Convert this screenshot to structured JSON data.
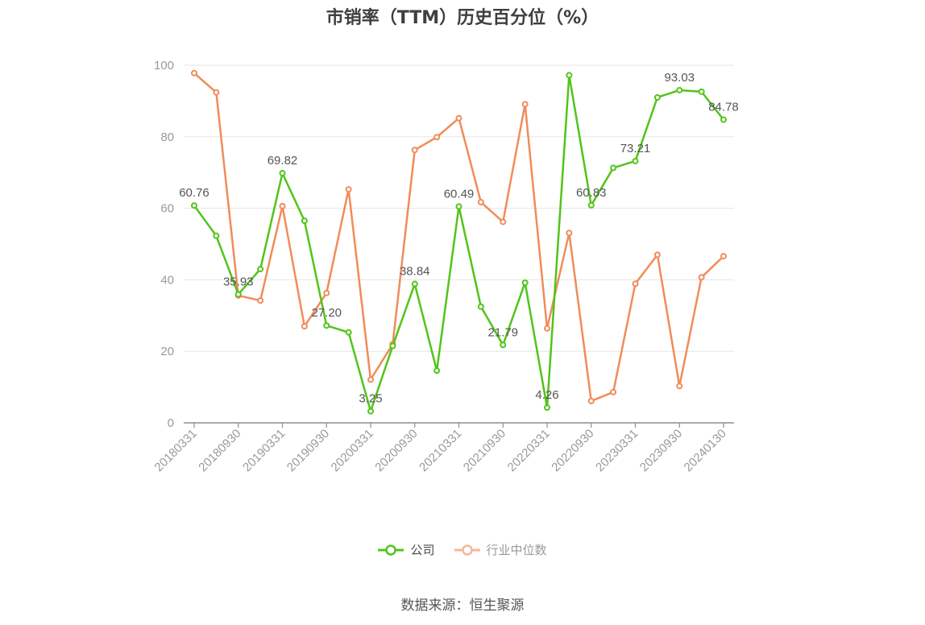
{
  "chart_data": {
    "type": "line",
    "title": "市销率（TTM）历史百分位（%）",
    "source": "数据来源：恒生聚源",
    "ylim": [
      0,
      100
    ],
    "yticks": [
      0,
      20,
      40,
      60,
      80,
      100
    ],
    "grid": true,
    "legend_position": "bottom",
    "x": [
      "20180331",
      "20180630",
      "20180930",
      "20181231",
      "20190331",
      "20190630",
      "20190930",
      "20191231",
      "20200331",
      "20200630",
      "20200930",
      "20201231",
      "20210331",
      "20210630",
      "20210930",
      "20211231",
      "20220331",
      "20220630",
      "20220930",
      "20221231",
      "20230331",
      "20230630",
      "20230930",
      "20231231",
      "20240130"
    ],
    "xtick_labels": [
      "20180331",
      "20180930",
      "20190331",
      "20190930",
      "20200331",
      "20200930",
      "20210331",
      "20210930",
      "20220331",
      "20220930",
      "20230331",
      "20230930",
      "20240130"
    ],
    "series": [
      {
        "name": "公司",
        "color": "#52c41a",
        "values": [
          60.76,
          52.3,
          35.93,
          43.0,
          69.82,
          56.5,
          27.2,
          25.3,
          3.25,
          21.5,
          38.84,
          14.6,
          60.49,
          32.5,
          21.79,
          39.2,
          4.26,
          97.2,
          60.83,
          71.3,
          73.21,
          91.0,
          93.03,
          92.6,
          84.78
        ],
        "labels": [
          "60.76",
          null,
          "35.93",
          null,
          "69.82",
          null,
          "27.20",
          null,
          "3.25",
          null,
          "38.84",
          null,
          "60.49",
          null,
          "21.79",
          null,
          "4.26",
          null,
          "60.83",
          null,
          "73.21",
          null,
          "93.03",
          null,
          "84.78"
        ]
      },
      {
        "name": "行业中位数",
        "color": "#f08c5a",
        "values": [
          97.8,
          92.4,
          35.6,
          34.2,
          60.6,
          27.0,
          36.3,
          65.3,
          12.1,
          22.0,
          76.3,
          79.9,
          85.2,
          61.7,
          56.2,
          89.1,
          26.4,
          53.1,
          6.1,
          8.6,
          38.9,
          47.0,
          10.3,
          40.7,
          46.6
        ]
      }
    ]
  }
}
